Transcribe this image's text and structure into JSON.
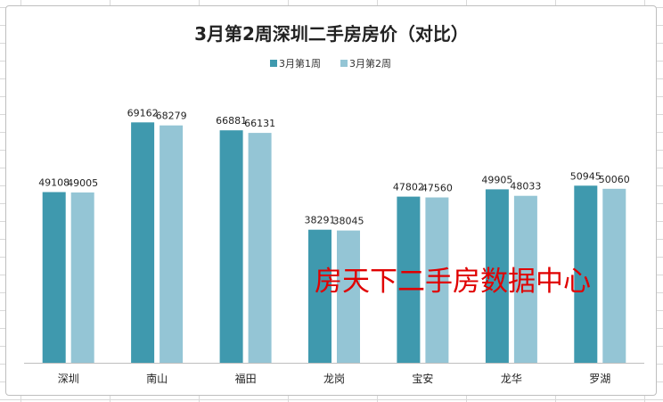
{
  "chart_data": {
    "type": "bar",
    "title": "3月第2周深圳二手房房价（对比）",
    "categories": [
      "深圳",
      "南山",
      "福田",
      "龙岗",
      "宝安",
      "龙华",
      "罗湖"
    ],
    "series": [
      {
        "name": "3月第1周",
        "values": [
          49108,
          69162,
          66881,
          38291,
          47802,
          49905,
          50945
        ],
        "color": "#3f99ae"
      },
      {
        "name": "3月第2周",
        "values": [
          49005,
          68279,
          66131,
          38045,
          47560,
          48033,
          50060
        ],
        "color": "#94c5d5"
      }
    ],
    "data_labels": [
      [
        "49108",
        "69162",
        "66881",
        "38291",
        "47802",
        "49905",
        "50945"
      ],
      [
        "49005",
        "68279",
        "66131",
        "38045",
        "47560",
        "48033",
        "50060"
      ]
    ],
    "ylim": [
      0,
      80000
    ],
    "legend_position": "top",
    "grid": false,
    "xlabel": "",
    "ylabel": ""
  },
  "watermark": "房天下二手房数据中心"
}
